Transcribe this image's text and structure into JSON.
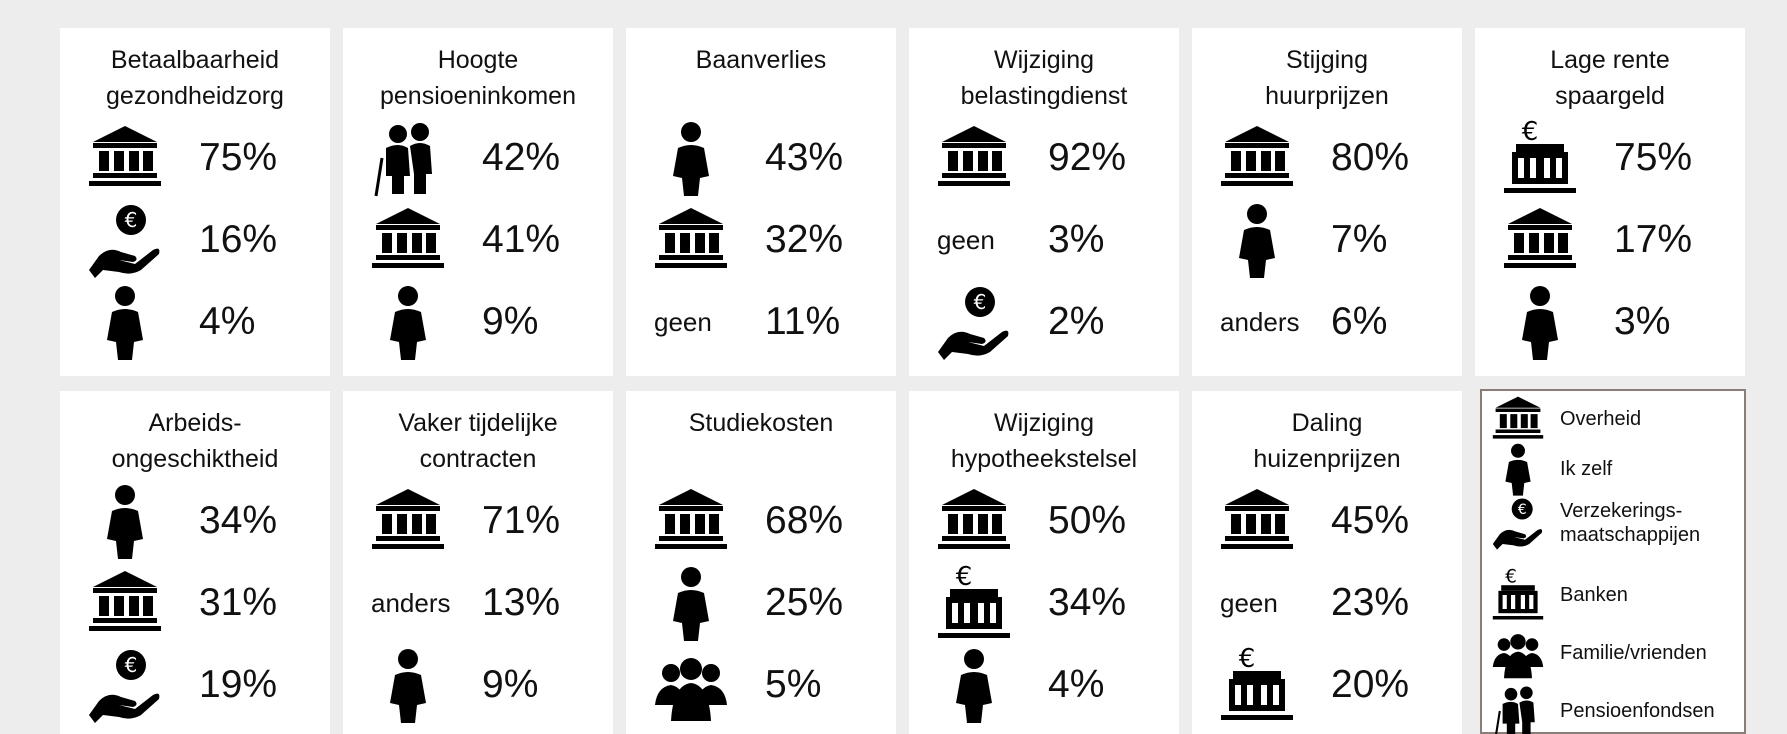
{
  "tiles": [
    {
      "title": [
        "Betaalbaarheid",
        "gezondheidzorg"
      ],
      "rows": [
        {
          "value": "75%"
        },
        {
          "value": "16%"
        },
        {
          "value": "4%"
        }
      ]
    },
    {
      "title": [
        "Hoogte",
        "pensioeninkomen"
      ],
      "rows": [
        {
          "value": "42%"
        },
        {
          "value": "41%"
        },
        {
          "value": "9%"
        }
      ]
    },
    {
      "title": [
        "Baanverlies"
      ],
      "rows": [
        {
          "value": "43%"
        },
        {
          "value": "32%"
        },
        {
          "label": "geen",
          "value": "11%"
        }
      ]
    },
    {
      "title": [
        "Wijziging",
        "belastingdienst"
      ],
      "rows": [
        {
          "value": "92%"
        },
        {
          "label": "geen",
          "value": "3%"
        },
        {
          "value": "2%"
        }
      ]
    },
    {
      "title": [
        "Stijging",
        "huurprijzen"
      ],
      "rows": [
        {
          "value": "80%"
        },
        {
          "value": "7%"
        },
        {
          "label": "anders",
          "value": "6%"
        }
      ]
    },
    {
      "title": [
        "Lage rente",
        "spaargeld"
      ],
      "rows": [
        {
          "value": "75%"
        },
        {
          "value": "17%"
        },
        {
          "value": "3%"
        }
      ]
    },
    {
      "title": [
        "Arbeids-",
        "ongeschiktheid"
      ],
      "rows": [
        {
          "value": "34%"
        },
        {
          "value": "31%"
        },
        {
          "value": "19%"
        }
      ]
    },
    {
      "title": [
        "Vaker tijdelijke",
        "contracten"
      ],
      "rows": [
        {
          "value": "71%"
        },
        {
          "label": "anders",
          "value": "13%"
        },
        {
          "value": "9%"
        }
      ]
    },
    {
      "title": [
        "Studiekosten"
      ],
      "rows": [
        {
          "value": "68%"
        },
        {
          "value": "25%"
        },
        {
          "value": "5%"
        }
      ]
    },
    {
      "title": [
        "Wijziging",
        "hypotheekstelsel"
      ],
      "rows": [
        {
          "value": "50%"
        },
        {
          "value": "34%"
        },
        {
          "value": "4%"
        }
      ]
    },
    {
      "title": [
        "Daling",
        "huizenprijzen"
      ],
      "rows": [
        {
          "value": "45%"
        },
        {
          "label": "geen",
          "value": "23%"
        },
        {
          "value": "20%"
        }
      ]
    }
  ],
  "legend": [
    {
      "label": [
        "Overheid"
      ]
    },
    {
      "label": [
        "Ik zelf"
      ]
    },
    {
      "label": [
        "Verzekerings-",
        "maatschappijen"
      ]
    },
    {
      "label": [
        "Banken"
      ]
    },
    {
      "label": [
        "Familie/vrienden"
      ]
    },
    {
      "label": [
        "Pensioenfondsen"
      ]
    }
  ]
}
